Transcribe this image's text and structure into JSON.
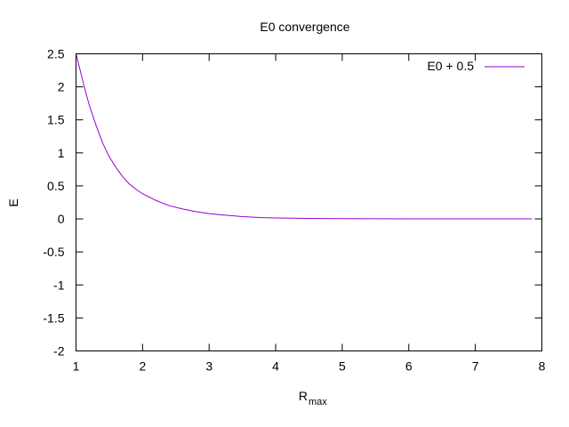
{
  "chart_data": {
    "type": "line",
    "title": "E0 convergence",
    "xlabel_main": "R",
    "xlabel_sub": "max",
    "ylabel": "E",
    "xlim": [
      1,
      8
    ],
    "ylim": [
      -2,
      2.5
    ],
    "xticks": [
      1,
      2,
      3,
      4,
      5,
      6,
      7,
      8
    ],
    "xtick_labels": [
      "1",
      "2",
      "3",
      "4",
      "5",
      "6",
      "7",
      "8"
    ],
    "yticks": [
      -2,
      -1.5,
      -1,
      -0.5,
      0,
      0.5,
      1,
      1.5,
      2,
      2.5
    ],
    "ytick_labels": [
      "-2",
      "-1.5",
      "-1",
      "-0.5",
      "0",
      "0.5",
      "1",
      "1.5",
      "2",
      "2.5"
    ],
    "grid": false,
    "legend_position": "top-right",
    "series": [
      {
        "name": "E0 + 0.5",
        "color": "#9400d3",
        "x": [
          1.0,
          1.05,
          1.1,
          1.15,
          1.2,
          1.3,
          1.4,
          1.5,
          1.6,
          1.7,
          1.8,
          1.9,
          2.0,
          2.2,
          2.4,
          2.6,
          2.8,
          3.0,
          3.2,
          3.5,
          3.8,
          4.0,
          4.5,
          5.0,
          5.5,
          6.0,
          6.5,
          7.0,
          7.5,
          7.85
        ],
        "y": [
          2.5,
          2.3,
          2.1,
          1.9,
          1.72,
          1.42,
          1.15,
          0.94,
          0.78,
          0.64,
          0.53,
          0.45,
          0.38,
          0.28,
          0.2,
          0.15,
          0.11,
          0.08,
          0.06,
          0.035,
          0.02,
          0.015,
          0.008,
          0.004,
          0.002,
          0.001,
          0.0005,
          0.0003,
          0.0001,
          0.0
        ]
      }
    ]
  }
}
